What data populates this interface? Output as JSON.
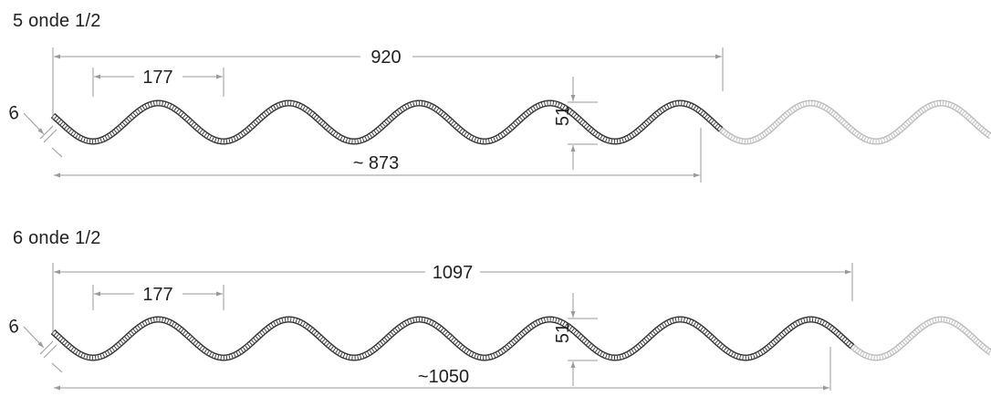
{
  "profiles": [
    {
      "title": "5 onde 1/2",
      "overall_width": "920",
      "wave_pitch": "177",
      "thickness": "6",
      "wave_height": "51",
      "useful_width": "~ 873"
    },
    {
      "title": "6 onde 1/2",
      "overall_width": "1097",
      "wave_pitch": "177",
      "thickness": "6",
      "wave_height": "51",
      "useful_width": "~1050"
    }
  ],
  "colors": {
    "sheet_dark": "#333333",
    "sheet_light": "#bbbbbb",
    "dimension_line": "#9a9a9a",
    "text": "#222222"
  }
}
